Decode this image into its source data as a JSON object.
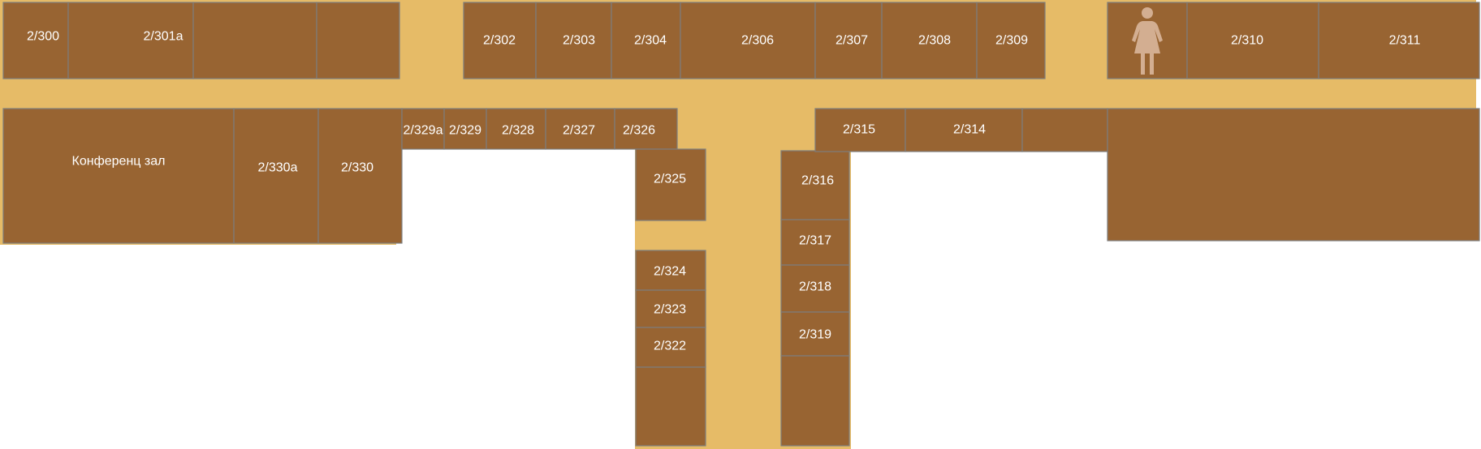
{
  "floor_plan": {
    "colors": {
      "corridor": "#e6bb67",
      "room": "#986432",
      "room_border": "#7d7d7d",
      "label": "#ffffff",
      "wc_icon": "#d3ae91"
    },
    "rooms": {
      "r300": "2/300",
      "r301a": "2/301a",
      "r302": "2/302",
      "r303": "2/303",
      "r304": "2/304",
      "r306": "2/306",
      "r307": "2/307",
      "r308": "2/308",
      "r309": "2/309",
      "r310": "2/310",
      "r311": "2/311",
      "conference": "Конференц зал",
      "r330a": "2/330a",
      "r330": "2/330",
      "r329a": "2/329a",
      "r329": "2/329",
      "r328": "2/328",
      "r327": "2/327",
      "r326": "2/326",
      "r325": "2/325",
      "r324": "2/324",
      "r323": "2/323",
      "r322": "2/322",
      "r315": "2/315",
      "r314": "2/314",
      "r316": "2/316",
      "r317": "2/317",
      "r318": "2/318",
      "r319": "2/319"
    },
    "icons": {
      "womens_restroom": "womens-restroom-icon"
    }
  }
}
